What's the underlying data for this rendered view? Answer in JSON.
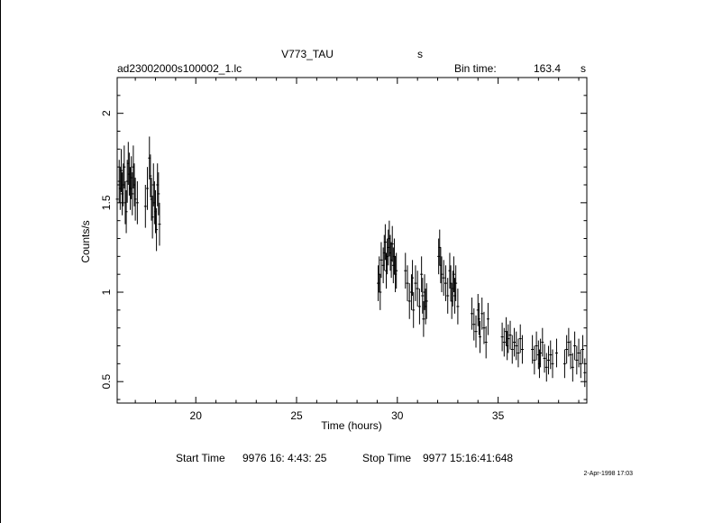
{
  "header": {
    "object": "V773_TAU",
    "object_unit": "s",
    "filename": "ad23002000s100002_1.lc",
    "bin_label": "Bin time:",
    "bin_value": "163.4",
    "bin_unit": "s"
  },
  "footer": {
    "start_label": "Start Time",
    "start_value": "9976 16: 4:43: 25",
    "stop_label": "Stop Time",
    "stop_value": "9977 15:16:41:648",
    "date_stamp": "2-Apr-1998 17:03"
  },
  "chart_data": {
    "type": "scatter",
    "title": "V773_TAU",
    "xlabel": "Time (hours)",
    "ylabel": "Counts/s",
    "xlim": [
      16.1,
      39.4
    ],
    "ylim": [
      0.38,
      2.2
    ],
    "xticks": [
      20,
      25,
      30,
      35
    ],
    "yticks": [
      0.5,
      1,
      1.5,
      2
    ],
    "grid": false,
    "error_bars": true,
    "series": [
      {
        "x": [
          16.1,
          16.2,
          16.25,
          16.3,
          16.35,
          16.4,
          16.45,
          16.5,
          16.55,
          16.6,
          16.65,
          16.7,
          16.75,
          16.8,
          16.85,
          16.9,
          16.95,
          17.0,
          17.1,
          17.5,
          17.6,
          17.7,
          17.75,
          17.8,
          17.85,
          17.9,
          17.95,
          18.0,
          18.05,
          18.1,
          18.15,
          18.2,
          29.05,
          29.1,
          29.15,
          29.2,
          29.3,
          29.35,
          29.4,
          29.45,
          29.5,
          29.55,
          29.6,
          29.65,
          29.7,
          29.75,
          29.8,
          29.85,
          29.9,
          29.95,
          30.4,
          30.5,
          30.6,
          30.7,
          30.75,
          30.8,
          30.9,
          31.0,
          31.1,
          31.2,
          31.25,
          31.3,
          31.35,
          31.4,
          31.45,
          32.05,
          32.1,
          32.15,
          32.2,
          32.3,
          32.4,
          32.5,
          32.6,
          32.65,
          32.7,
          32.75,
          32.8,
          32.85,
          32.9,
          33.0,
          33.7,
          33.8,
          33.9,
          34.0,
          34.05,
          34.1,
          34.2,
          34.3,
          34.4,
          34.5,
          35.2,
          35.3,
          35.4,
          35.45,
          35.5,
          35.6,
          35.7,
          35.8,
          35.9,
          36.0,
          36.1,
          36.2,
          36.7,
          36.8,
          36.9,
          37.0,
          37.05,
          37.1,
          37.2,
          37.3,
          37.4,
          37.5,
          37.6,
          37.7,
          37.9,
          38.3,
          38.4,
          38.5,
          38.6,
          38.7,
          38.8,
          38.9,
          39.0,
          39.1,
          39.2,
          39.3
        ],
        "y": [
          1.52,
          1.62,
          1.58,
          1.68,
          1.55,
          1.6,
          1.7,
          1.5,
          1.45,
          1.62,
          1.72,
          1.66,
          1.58,
          1.64,
          1.55,
          1.7,
          1.6,
          1.52,
          1.5,
          1.48,
          1.58,
          1.75,
          1.65,
          1.52,
          1.42,
          1.6,
          1.5,
          1.45,
          1.35,
          1.6,
          1.55,
          1.38,
          1.05,
          1.1,
          1.0,
          1.18,
          1.15,
          1.22,
          1.28,
          1.12,
          1.2,
          1.25,
          1.3,
          1.22,
          1.18,
          1.27,
          1.15,
          1.2,
          1.1,
          1.12,
          1.12,
          1.05,
          0.95,
          1.0,
          1.08,
          0.9,
          1.05,
          1.02,
          0.92,
          1.1,
          0.98,
          0.85,
          1.0,
          0.92,
          0.95,
          1.2,
          1.25,
          1.15,
          1.1,
          1.08,
          1.05,
          0.98,
          1.12,
          1.05,
          0.95,
          1.02,
          1.1,
          0.98,
          1.05,
          0.92,
          0.88,
          0.82,
          0.78,
          0.9,
          0.85,
          0.75,
          0.88,
          0.8,
          0.72,
          0.85,
          0.75,
          0.72,
          0.78,
          0.7,
          0.74,
          0.76,
          0.68,
          0.72,
          0.7,
          0.66,
          0.74,
          0.68,
          0.68,
          0.62,
          0.7,
          0.65,
          0.6,
          0.66,
          0.72,
          0.63,
          0.58,
          0.62,
          0.65,
          0.6,
          0.66,
          0.6,
          0.68,
          0.72,
          0.65,
          0.58,
          0.7,
          0.62,
          0.66,
          0.6,
          0.68,
          0.55
        ],
        "err": [
          0.12,
          0.12,
          0.12,
          0.12,
          0.12,
          0.12,
          0.12,
          0.12,
          0.12,
          0.12,
          0.12,
          0.12,
          0.12,
          0.12,
          0.12,
          0.12,
          0.12,
          0.12,
          0.12,
          0.12,
          0.12,
          0.12,
          0.12,
          0.12,
          0.12,
          0.12,
          0.12,
          0.12,
          0.12,
          0.12,
          0.12,
          0.12,
          0.1,
          0.1,
          0.1,
          0.1,
          0.1,
          0.1,
          0.1,
          0.1,
          0.1,
          0.1,
          0.1,
          0.1,
          0.1,
          0.1,
          0.1,
          0.1,
          0.1,
          0.1,
          0.1,
          0.1,
          0.1,
          0.1,
          0.1,
          0.1,
          0.1,
          0.1,
          0.1,
          0.1,
          0.1,
          0.1,
          0.1,
          0.1,
          0.1,
          0.1,
          0.1,
          0.1,
          0.1,
          0.1,
          0.1,
          0.1,
          0.1,
          0.1,
          0.1,
          0.1,
          0.1,
          0.1,
          0.1,
          0.1,
          0.09,
          0.09,
          0.09,
          0.09,
          0.09,
          0.09,
          0.09,
          0.09,
          0.09,
          0.09,
          0.08,
          0.08,
          0.08,
          0.08,
          0.08,
          0.08,
          0.08,
          0.08,
          0.08,
          0.08,
          0.08,
          0.08,
          0.08,
          0.08,
          0.08,
          0.08,
          0.08,
          0.08,
          0.08,
          0.08,
          0.08,
          0.08,
          0.08,
          0.08,
          0.08,
          0.08,
          0.08,
          0.08,
          0.08,
          0.08,
          0.08,
          0.08,
          0.08,
          0.08,
          0.08,
          0.08
        ]
      }
    ]
  }
}
